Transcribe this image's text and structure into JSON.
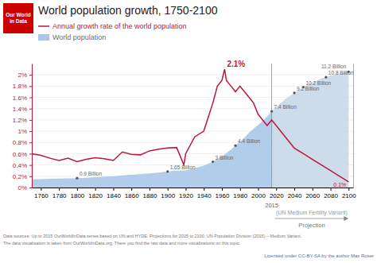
{
  "chart_data": {
    "type": "line",
    "title": "World population growth, 1750-2100",
    "logo": {
      "text": "Our World\nin Data",
      "color": "#cc0000"
    },
    "legend": "top-left",
    "grid": true,
    "xlim": [
      1750,
      2105
    ],
    "xticks": [
      1760,
      1780,
      1800,
      1820,
      1840,
      1860,
      1880,
      1900,
      1920,
      1940,
      1960,
      1980,
      2000,
      2020,
      2040,
      2060,
      2080,
      2100
    ],
    "ylim": [
      0,
      0.022
    ],
    "yticks": [
      {
        "value": 0,
        "label": "0%"
      },
      {
        "value": 0.002,
        "label": "0.2%"
      },
      {
        "value": 0.004,
        "label": "0.4%"
      },
      {
        "value": 0.006,
        "label": "0.6%"
      },
      {
        "value": 0.008,
        "label": "0.8%"
      },
      {
        "value": 0.01,
        "label": "1%"
      },
      {
        "value": 0.012,
        "label": "1.2%"
      },
      {
        "value": 0.014,
        "label": "1.4%"
      },
      {
        "value": 0.016,
        "label": "1.6%"
      },
      {
        "value": 0.018,
        "label": "1.8%"
      },
      {
        "value": 0.02,
        "label": "2%"
      }
    ],
    "y2lim": [
      0,
      12
    ],
    "series": [
      {
        "name": "Annual growth rate of the world population",
        "type": "line",
        "color": "#c0143c",
        "x": [
          1750,
          1760,
          1770,
          1780,
          1790,
          1800,
          1810,
          1820,
          1830,
          1840,
          1850,
          1860,
          1870,
          1880,
          1890,
          1900,
          1910,
          1918,
          1920,
          1930,
          1940,
          1950,
          1955,
          1960,
          1963,
          1965,
          1970,
          1975,
          1980,
          1985,
          1990,
          1995,
          2000,
          2005,
          2010,
          2015,
          2020,
          2030,
          2040,
          2050,
          2060,
          2070,
          2080,
          2090,
          2100
        ],
        "values": [
          0.006,
          0.0057,
          0.0052,
          0.0048,
          0.0052,
          0.0046,
          0.005,
          0.0053,
          0.0051,
          0.0048,
          0.0063,
          0.0059,
          0.0058,
          0.0065,
          0.0068,
          0.007,
          0.0071,
          0.004,
          0.006,
          0.009,
          0.01,
          0.015,
          0.018,
          0.019,
          0.021,
          0.019,
          0.018,
          0.017,
          0.018,
          0.017,
          0.016,
          0.015,
          0.013,
          0.012,
          0.011,
          0.012,
          0.011,
          0.009,
          0.007,
          0.006,
          0.005,
          0.004,
          0.003,
          0.002,
          0.001
        ]
      },
      {
        "name": "World population",
        "type": "area",
        "color": "#a8c8e8",
        "axis": "y2",
        "x": [
          1750,
          1760,
          1770,
          1780,
          1790,
          1800,
          1810,
          1820,
          1830,
          1840,
          1850,
          1860,
          1870,
          1880,
          1890,
          1900,
          1910,
          1920,
          1930,
          1940,
          1950,
          1960,
          1970,
          1975,
          1980,
          1985,
          1990,
          1995,
          2000,
          2005,
          2010,
          2015
        ],
        "values": [
          0.79,
          0.81,
          0.84,
          0.87,
          0.89,
          0.91,
          0.94,
          1.0,
          1.05,
          1.09,
          1.17,
          1.24,
          1.3,
          1.37,
          1.45,
          1.55,
          1.63,
          1.65,
          1.86,
          2.11,
          2.5,
          3.02,
          3.68,
          4.06,
          4.44,
          4.83,
          5.3,
          5.7,
          6.06,
          6.45,
          6.89,
          7.38
        ]
      },
      {
        "type": "area",
        "color": "#c8d8e8",
        "axis": "y2",
        "x": [
          2015,
          2020,
          2030,
          2040,
          2050,
          2060,
          2070,
          2080,
          2090,
          2100
        ],
        "values": [
          7.38,
          7.79,
          8.55,
          9.16,
          9.73,
          10.18,
          10.55,
          10.82,
          11.04,
          11.21
        ]
      }
    ],
    "annotations": [
      {
        "text": "0.9 Billion",
        "x": 1800,
        "y": 0.91,
        "axis": "y2"
      },
      {
        "text": "1.65 Billion",
        "x": 1900,
        "y": 1.55,
        "axis": "y2"
      },
      {
        "text": "3 Billion",
        "x": 1950,
        "y": 2.5,
        "axis": "y2"
      },
      {
        "text": "4.4 Billion",
        "x": 1975,
        "y": 4.06,
        "axis": "y2"
      },
      {
        "text": "7.4 Billion",
        "x": 2015,
        "y": 7.38,
        "axis": "y2"
      },
      {
        "text": "9.2 Billion",
        "x": 2040,
        "y": 9.16,
        "axis": "y2"
      },
      {
        "text": "10.2 Billion",
        "x": 2050,
        "y": 9.73,
        "axis": "y2"
      },
      {
        "text": "10.8 Billion",
        "x": 2075,
        "y": 10.68,
        "axis": "y2"
      },
      {
        "text": "11.2 Billion",
        "x": 2100,
        "y": 11.21,
        "axis": "y2"
      },
      {
        "text": "2.1%",
        "x": 1963,
        "y": 0.021
      },
      {
        "text": "0.1%",
        "x": 2100,
        "y": 0.001
      },
      {
        "text": "2015",
        "x": 2015
      },
      {
        "text": "Projection"
      },
      {
        "text": "(UN Medium Fertility Variant)"
      }
    ],
    "footnotes": [
      "Data sources:  Up to 2015 OurWorldInData series based on UN and HYDE. Projections for 2015 to 2100: UN Population Division (2015) – Medium Variant.",
      "The data visualisation is taken from OurWorldInData.org. There you find the raw data and more visualizations on this topic."
    ],
    "license": "Licensed under CC-BY-SA by the author Max Roser"
  }
}
